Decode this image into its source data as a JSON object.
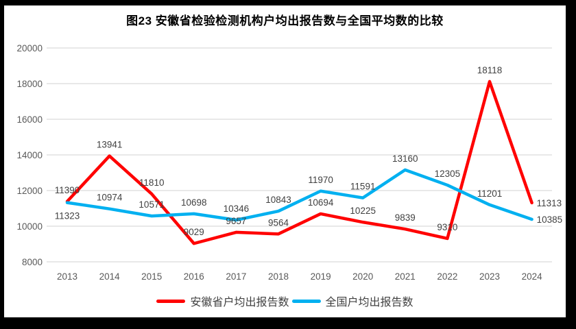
{
  "window": {
    "background": "#ffffff",
    "frame_color": "#000000"
  },
  "chart_data": {
    "type": "line",
    "title": "图23 安徽省检验检测机构户均出报告数与全国平均数的比较",
    "categories": [
      "2013",
      "2014",
      "2015",
      "2016",
      "2017",
      "2018",
      "2019",
      "2020",
      "2021",
      "2022",
      "2023",
      "2024"
    ],
    "series": [
      {
        "name": "安徽省户均出报告数",
        "color": "#FF0000",
        "values": [
          11390,
          13941,
          11810,
          9029,
          9657,
          9564,
          10694,
          10225,
          9839,
          9310,
          18118,
          11313
        ]
      },
      {
        "name": "全国户均出报告数",
        "color": "#00B0F0",
        "values": [
          11323,
          10974,
          10571,
          10698,
          10346,
          10843,
          11970,
          11591,
          13160,
          12305,
          11201,
          10385
        ]
      }
    ],
    "xlabel": "",
    "ylabel": "",
    "ylim": [
      8000,
      20000
    ],
    "ytick_step": 2000,
    "yticks": [
      "8000",
      "10000",
      "12000",
      "14000",
      "16000",
      "18000",
      "20000"
    ],
    "grid": true,
    "grid_color": "#D9D9D9",
    "tick_color": "#595959",
    "data_label_color": "#404040",
    "data_labels": true,
    "legend_position": "bottom"
  }
}
